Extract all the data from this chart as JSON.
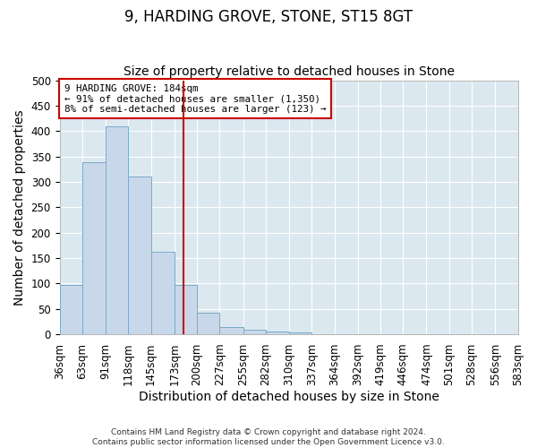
{
  "title": "9, HARDING GROVE, STONE, ST15 8GT",
  "subtitle": "Size of property relative to detached houses in Stone",
  "xlabel": "Distribution of detached houses by size in Stone",
  "ylabel": "Number of detached properties",
  "bin_edges": [
    36,
    63,
    91,
    118,
    145,
    173,
    200,
    227,
    255,
    282,
    310,
    337,
    364,
    392,
    419,
    446,
    474,
    501,
    528,
    556,
    583
  ],
  "bar_values": [
    97,
    338,
    410,
    311,
    162,
    97,
    42,
    15,
    9,
    5,
    3,
    1,
    0,
    0,
    0,
    0,
    1,
    0,
    1,
    0
  ],
  "bar_color": "#c8d8ea",
  "bar_edge_color": "#7aaac8",
  "vline_x": 184,
  "vline_color": "#cc0000",
  "ylim": [
    0,
    500
  ],
  "yticks": [
    0,
    50,
    100,
    150,
    200,
    250,
    300,
    350,
    400,
    450,
    500
  ],
  "annotation_text": "9 HARDING GROVE: 184sqm\n← 91% of detached houses are smaller (1,350)\n8% of semi-detached houses are larger (123) →",
  "annotation_box_color": "#ffffff",
  "annotation_box_edge_color": "#cc0000",
  "footer_line1": "Contains HM Land Registry data © Crown copyright and database right 2024.",
  "footer_line2": "Contains public sector information licensed under the Open Government Licence v3.0.",
  "fig_background_color": "#ffffff",
  "plot_background_color": "#dce8f0",
  "grid_color": "#ffffff",
  "title_fontsize": 12,
  "subtitle_fontsize": 10,
  "axis_label_fontsize": 10,
  "tick_fontsize": 8.5
}
